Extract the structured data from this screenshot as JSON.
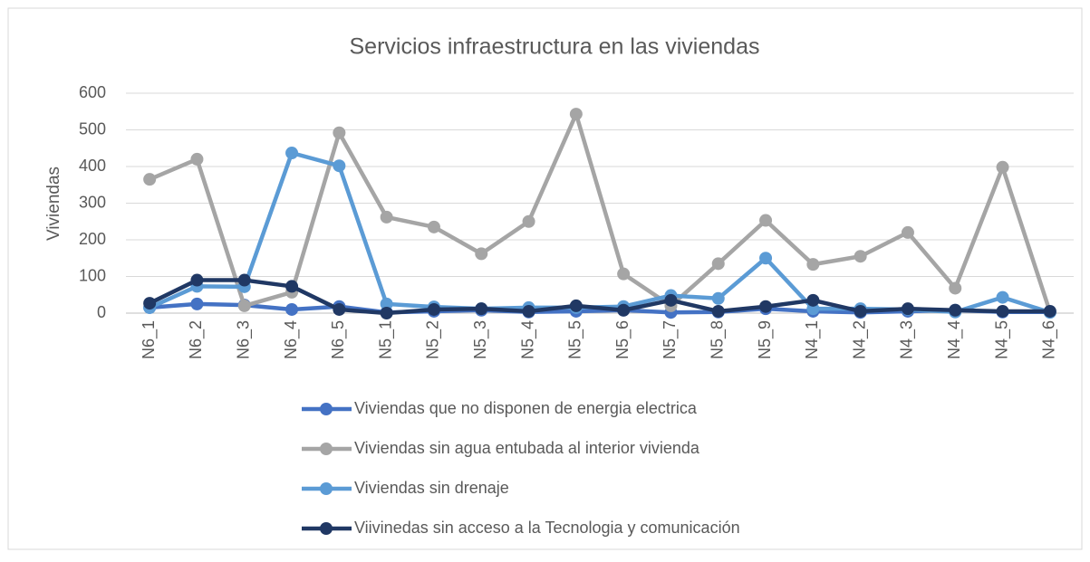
{
  "chart_data": {
    "type": "line",
    "title": "Servicios infraestructura en las viviendas",
    "y_label": "Viviendas",
    "categories": [
      "N6_1",
      "N6_2",
      "N6_3",
      "N6_4",
      "N6_5",
      "N5_1",
      "N5_2",
      "N5_3",
      "N5_4",
      "N5_5",
      "N5_6",
      "N5_7",
      "N5_8",
      "N5_9",
      "N4_1",
      "N4_2",
      "N4_3",
      "N4_4",
      "N4_5",
      "N4_6"
    ],
    "series": [
      {
        "name": "Viviendas que no disponen de energia electrica",
        "color": "#4472c4",
        "values": [
          15,
          25,
          22,
          10,
          18,
          2,
          5,
          8,
          3,
          5,
          8,
          2,
          3,
          12,
          5,
          2,
          5,
          8,
          3,
          3
        ]
      },
      {
        "name": "Viviendas sin agua entubada al interior vivienda",
        "color": "#a5a5a5",
        "values": [
          365,
          420,
          20,
          57,
          492,
          262,
          235,
          162,
          250,
          543,
          107,
          20,
          135,
          253,
          133,
          155,
          220,
          68,
          398,
          3
        ]
      },
      {
        "name": "Viviendas sin drenaje",
        "color": "#5b9bd5",
        "values": [
          15,
          73,
          72,
          437,
          402,
          25,
          17,
          12,
          15,
          15,
          18,
          48,
          40,
          150,
          12,
          12,
          10,
          3,
          43,
          2
        ]
      },
      {
        "name": "Viivinedas sin acceso a la Tecnologia y comunicación",
        "color": "#203864",
        "values": [
          27,
          90,
          90,
          73,
          10,
          0,
          10,
          12,
          5,
          20,
          8,
          35,
          5,
          18,
          35,
          5,
          12,
          8,
          5,
          5
        ]
      }
    ],
    "ylim": [
      0,
      600
    ],
    "yticks": [
      0,
      100,
      200,
      300,
      400,
      500,
      600
    ],
    "grid": true
  }
}
